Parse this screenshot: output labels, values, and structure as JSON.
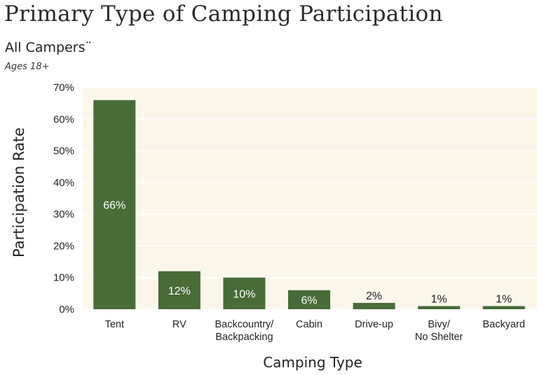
{
  "title": "Primary Type of Camping Participation",
  "subtitle": "All Campers¨",
  "note": "Ages 18+",
  "colors": {
    "bar": "#476c37",
    "plot_background": "#faf6ea",
    "gridline": "#ffffff",
    "inside_label": "#ffffff",
    "outside_label": "#222222"
  },
  "chart_data": {
    "type": "bar",
    "categories": [
      "Tent",
      "RV",
      "Backcountry/\nBackpacking",
      "Cabin",
      "Drive-up",
      "Bivy/\nNo Shelter",
      "Backyard"
    ],
    "values": [
      66,
      12,
      10,
      6,
      2,
      1,
      1
    ],
    "data_labels": [
      "66%",
      "12%",
      "10%",
      "6%",
      "2%",
      "1%",
      "1%"
    ],
    "xlabel": "Camping Type",
    "ylabel": "Participation Rate",
    "ylim": [
      0,
      70
    ],
    "yticks": [
      0,
      10,
      20,
      30,
      40,
      50,
      60,
      70
    ],
    "ytick_labels": [
      "0%",
      "10%",
      "20%",
      "30%",
      "40%",
      "50%",
      "60%",
      "70%"
    ],
    "grid": true,
    "legend": "none"
  }
}
